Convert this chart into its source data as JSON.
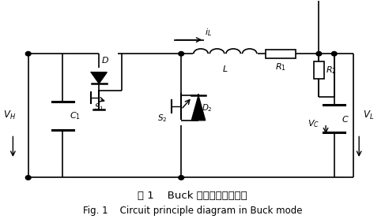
{
  "title_cn": "图 1    Buck 模式下电路原理图",
  "title_en": "Fig. 1    Circuit principle diagram in Buck mode",
  "bg_color": "#ffffff",
  "line_color": "#000000",
  "component_color": "#000000",
  "fig_width": 4.87,
  "fig_height": 2.78,
  "dpi": 100
}
